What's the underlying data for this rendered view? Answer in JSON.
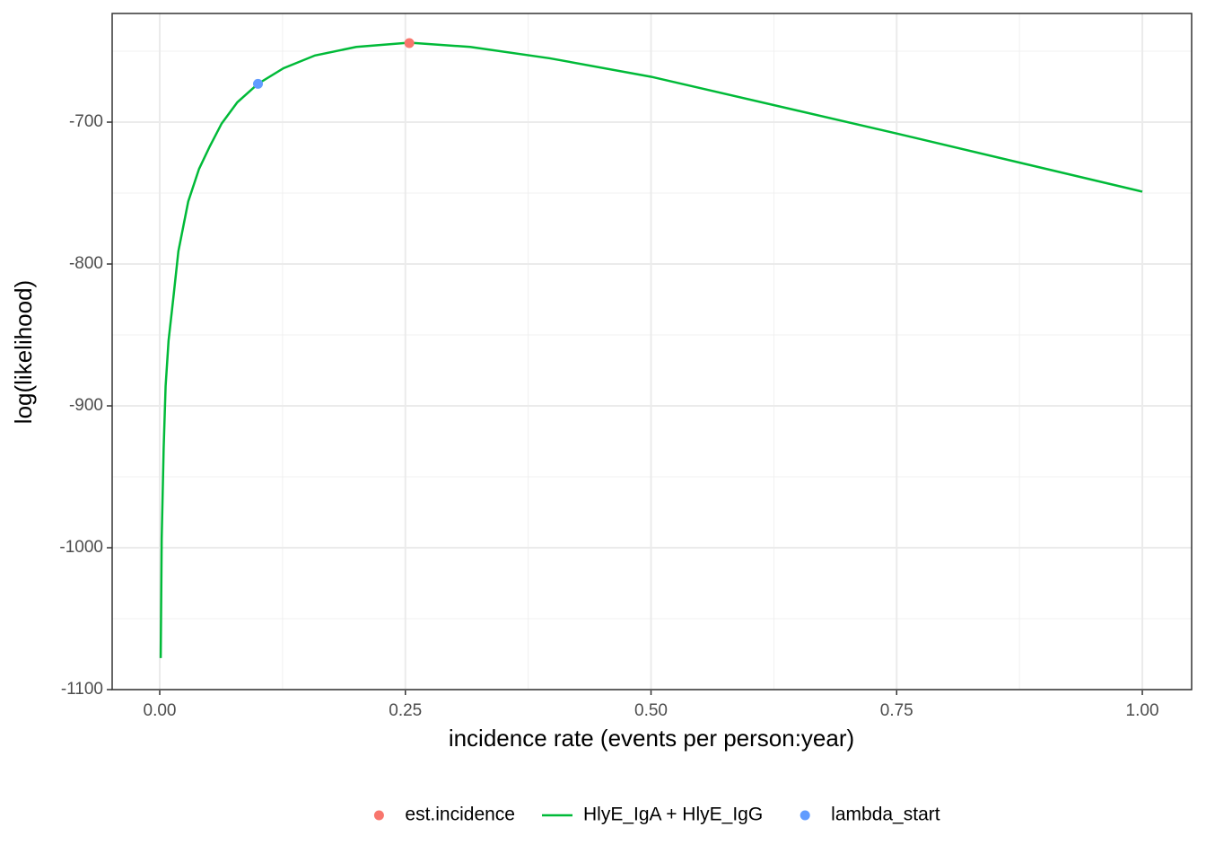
{
  "chart_data": {
    "type": "line",
    "x_label": "incidence rate (events per person:year)",
    "y_label": "log(likelihood)",
    "xlim": [
      -0.0484,
      1.0502
    ],
    "ylim": [
      -1100,
      -623.4
    ],
    "xticks": [
      {
        "value": 0,
        "label": "0.00"
      },
      0.25,
      {
        "value": 0.5,
        "label": "0.50"
      },
      0.75,
      {
        "value": 1,
        "label": "1.00"
      }
    ],
    "yticks": [
      -1100,
      -1000,
      -900,
      -800,
      -700
    ],
    "grid": true,
    "legend": "bottom",
    "series": [
      {
        "name": "est.incidence",
        "color": "#F8766D",
        "mark": "point",
        "x": [
          0.254
        ],
        "values": [
          -644.3
        ]
      },
      {
        "name": "HlyE_IgA + HlyE_IgG",
        "color": "#00BA38",
        "mark": "line",
        "x": [
          0.001,
          0.002,
          0.004,
          0.006,
          0.009,
          0.014,
          0.019,
          0.029,
          0.04,
          0.051,
          0.063,
          0.079,
          0.1,
          0.126,
          0.158,
          0.2,
          0.254,
          0.316,
          0.397,
          0.5,
          0.75,
          1.0
        ],
        "values": [
          -1077.8,
          -993.7,
          -930,
          -886,
          -854,
          -823,
          -791,
          -756,
          -733,
          -717,
          -701,
          -686,
          -673,
          -662,
          -653,
          -647,
          -644,
          -647,
          -655,
          -668,
          -708,
          -749
        ]
      },
      {
        "name": "lambda_start",
        "color": "#619CFF",
        "mark": "point",
        "x": [
          0.1
        ],
        "values": [
          -673
        ]
      }
    ]
  }
}
